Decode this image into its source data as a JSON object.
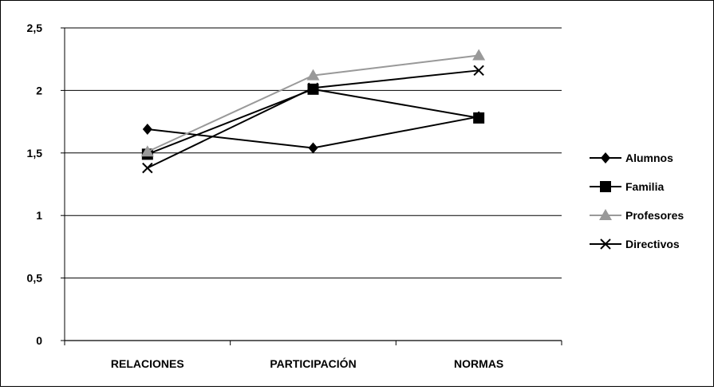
{
  "chart_data": {
    "type": "line",
    "categories": [
      "RELACIONES",
      "PARTICIPACIÓN",
      "NORMAS"
    ],
    "ylim": [
      0,
      2.5
    ],
    "yticks": [
      "0",
      "0,5",
      "1",
      "1,5",
      "2",
      "2,5"
    ],
    "grid": true,
    "legend_position": "right",
    "series": [
      {
        "name": "Alumnos",
        "values": [
          1.69,
          1.54,
          1.79
        ],
        "color": "#000000",
        "marker": "diamond"
      },
      {
        "name": "Familia",
        "values": [
          1.49,
          2.01,
          1.78
        ],
        "color": "#000000",
        "marker": "square"
      },
      {
        "name": "Profesores",
        "values": [
          1.51,
          2.12,
          2.28
        ],
        "color": "#999999",
        "marker": "triangle"
      },
      {
        "name": "Directivos",
        "values": [
          1.38,
          2.02,
          2.16
        ],
        "color": "#000000",
        "marker": "x"
      }
    ]
  }
}
